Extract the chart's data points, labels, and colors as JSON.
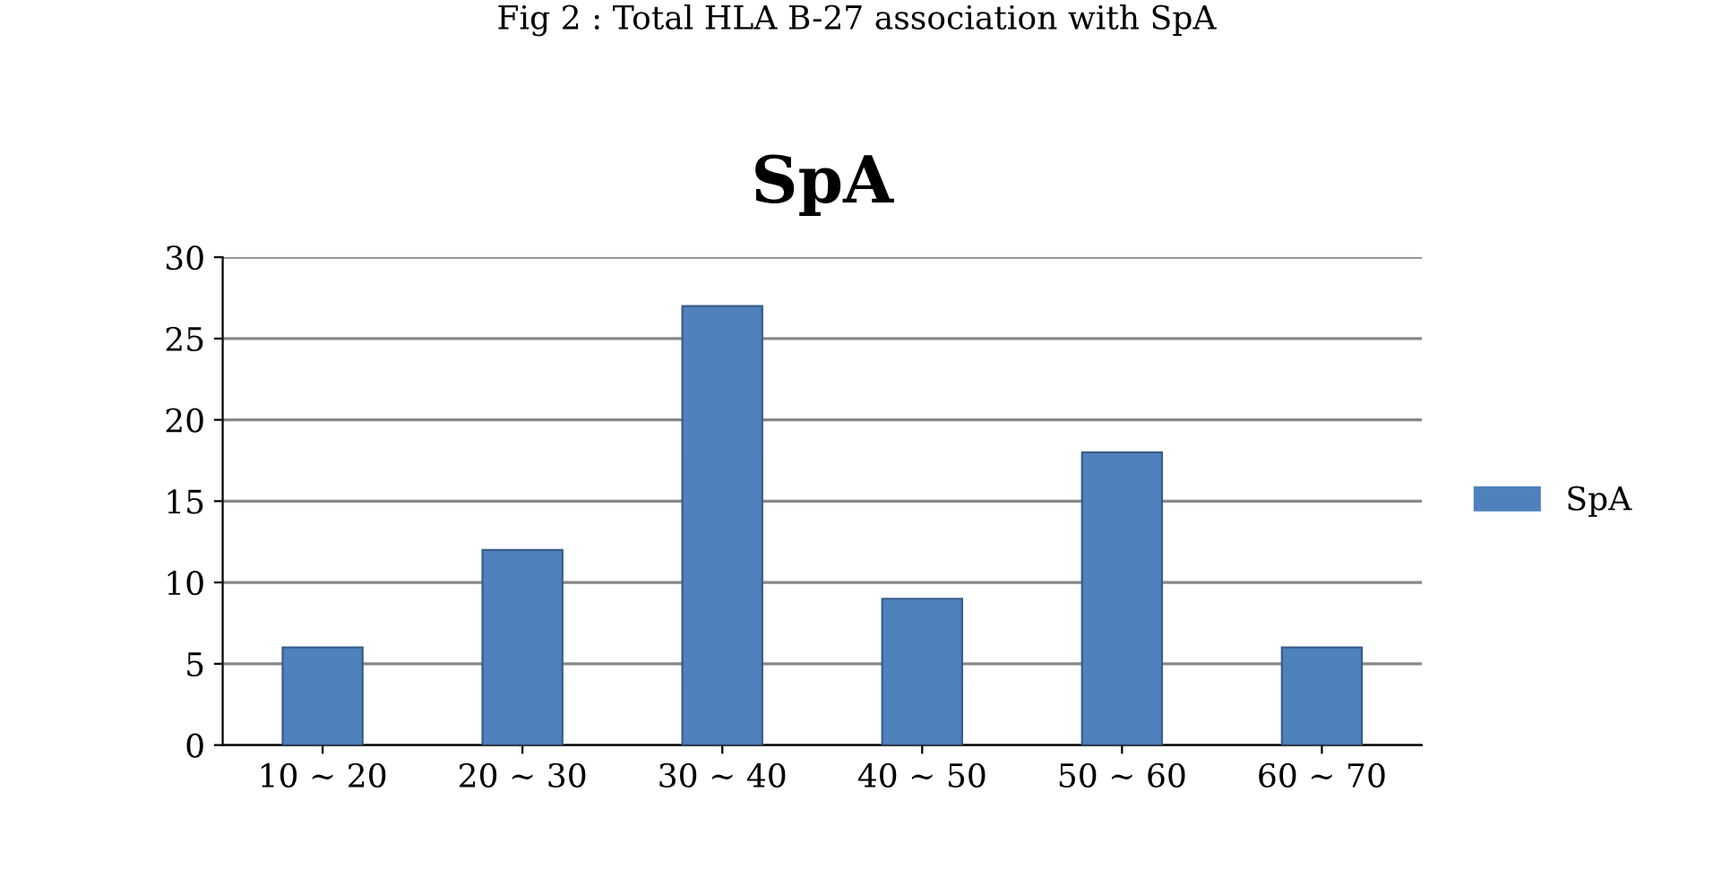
{
  "chart_data": {
    "type": "bar",
    "title": "SpA",
    "annotations": [
      "Fig 2 : Total HLA B-27 association with SpA"
    ],
    "categories": [
      "10 ~ 20",
      "20 ~ 30",
      "30 ~ 40",
      "40 ~ 50",
      "50 ~ 60",
      "60 ~ 70"
    ],
    "series": [
      {
        "name": "SpA",
        "color": "#4f81bd",
        "values": [
          6,
          12,
          27,
          9,
          18,
          6
        ]
      }
    ],
    "ylim": [
      0,
      30
    ],
    "yticks": [
      0,
      5,
      10,
      15,
      20,
      25,
      30
    ],
    "grid": "y",
    "legend": "right"
  }
}
